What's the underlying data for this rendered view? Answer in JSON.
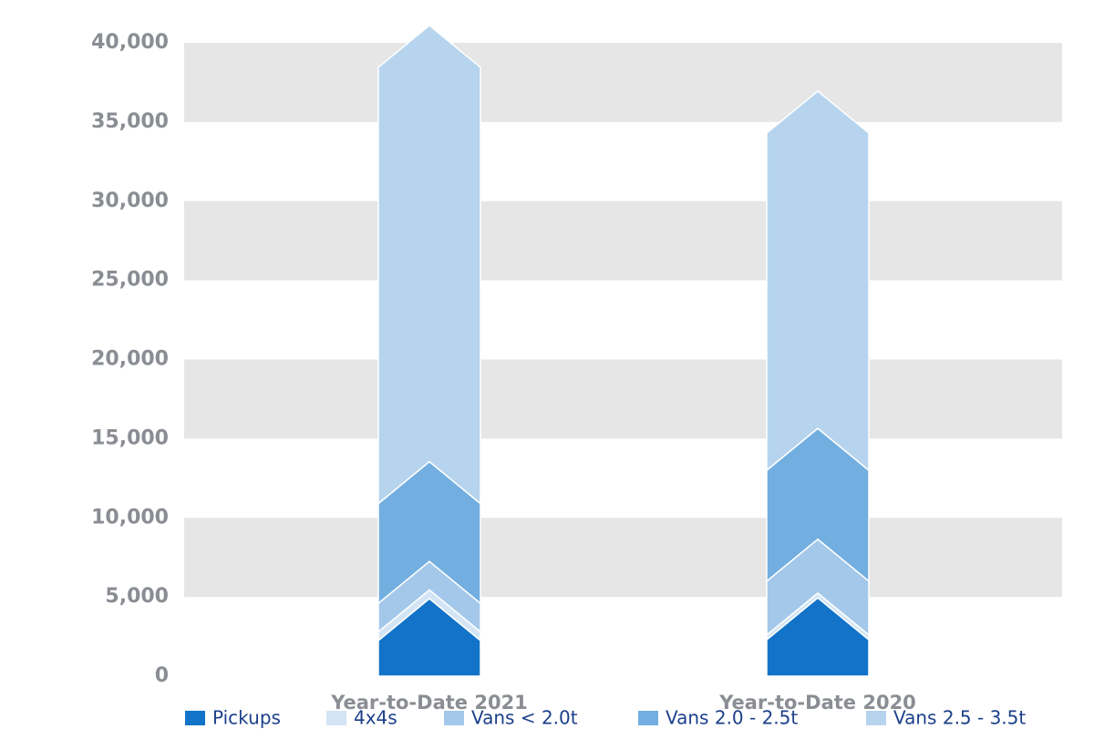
{
  "chart_data": {
    "type": "stacked-arrow-bar",
    "categories": [
      "Year-to-Date 2021",
      "Year-to-Date 2020"
    ],
    "series": [
      {
        "name": "Pickups",
        "color": "#1273c9",
        "values": [
          2250,
          2300
        ]
      },
      {
        "name": "4x4s",
        "color": "#d3e5f5",
        "values": [
          550,
          300
        ]
      },
      {
        "name": "Vans < 2.0t",
        "color": "#a3c8ea",
        "values": [
          1800,
          3400
        ]
      },
      {
        "name": "Vans 2.0 - 2.5t",
        "color": "#72aee0",
        "values": [
          6300,
          7000
        ]
      },
      {
        "name": "Vans 2.5 - 3.5t",
        "color": "#b6d4ee",
        "values": [
          27550,
          21300
        ]
      }
    ],
    "ylim": [
      0,
      40000
    ],
    "yticks": [
      0,
      {
        "value": 5000,
        "label": "5,000"
      },
      {
        "value": 10000,
        "label": "10,000"
      },
      {
        "value": 15000,
        "label": "15,000"
      },
      {
        "value": 20000,
        "label": "20,000"
      },
      {
        "value": 25000,
        "label": "25,000"
      },
      {
        "value": 30000,
        "label": "30,000"
      },
      {
        "value": 35000,
        "label": "35,000"
      },
      {
        "value": 40000,
        "label": "40,000"
      }
    ],
    "grid": "bands"
  }
}
